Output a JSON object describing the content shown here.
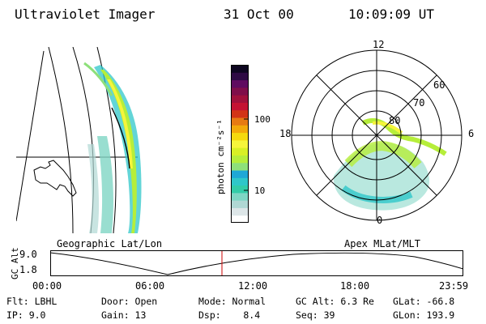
{
  "header": {
    "instrument": "Ultraviolet Imager",
    "date": "31 Oct 00",
    "time": "10:09:09 UT"
  },
  "panels": {
    "left_label": "Geographic Lat/Lon",
    "right_label": "Apex MLat/MLT"
  },
  "colorbar": {
    "unit_label": "photon cm⁻²s⁻¹",
    "ticks": [
      "100",
      "10"
    ],
    "colors": [
      "#ffffff",
      "#dde6e8",
      "#b0d8d4",
      "#7fd6c4",
      "#33cca8",
      "#2fc7c9",
      "#1fa7d6",
      "#8ee07a",
      "#b6ee3a",
      "#d8f025",
      "#f6f53b",
      "#f5d90e",
      "#f3a90a",
      "#e77a12",
      "#d23416",
      "#c41233",
      "#a0113c",
      "#7f0e4a",
      "#5f0b60",
      "#2e0a44",
      "#0d0620"
    ]
  },
  "polar": {
    "mlt_labels": [
      "12",
      "18",
      "6",
      "0"
    ],
    "lat_labels": [
      "60",
      "70",
      "80"
    ]
  },
  "timeline": {
    "y_axis_label": "GC Alt",
    "y_ticks": [
      "9.0",
      "1.8"
    ],
    "x_ticks": [
      "00:00",
      "06:00",
      "12:00",
      "18:00",
      "23:59"
    ],
    "marker_color": "#cc0000"
  },
  "info": {
    "rows": [
      [
        "Flt: LBHL",
        "Door: Open",
        "Mode: Normal",
        "GC Alt: 6.3 Re",
        "GLat: -66.8"
      ],
      [
        "IP: 9.0",
        "Gain: 13",
        "Dsp:    8.4",
        "Seq: 39",
        "GLon: 193.9"
      ]
    ]
  }
}
